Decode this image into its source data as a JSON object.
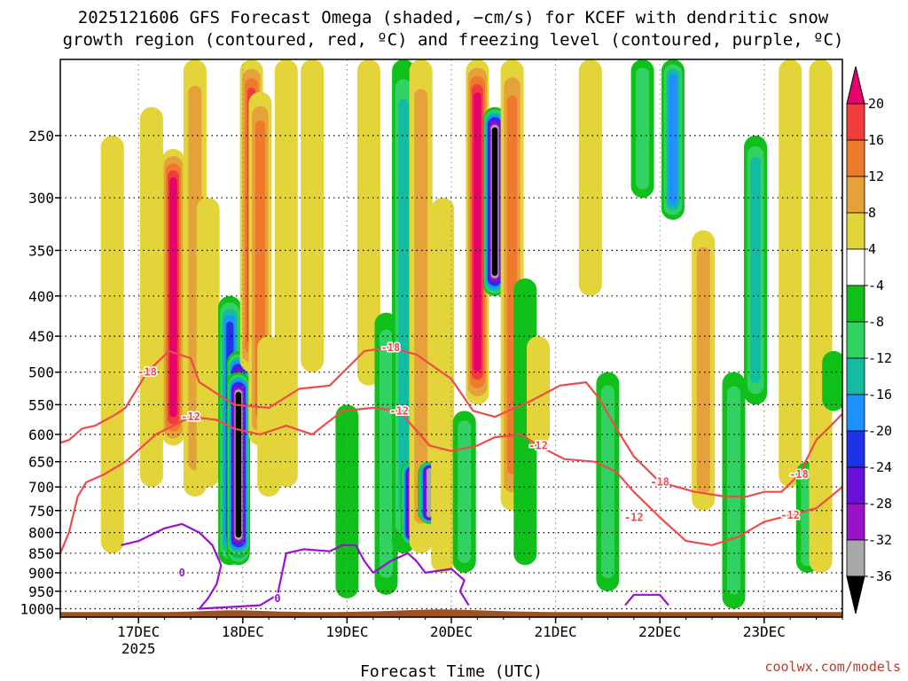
{
  "chart_data": {
    "type": "heatmap",
    "title_line1": "2025121606 GFS Forecast Omega (shaded, −cm/s) for KCEF with dendritic snow",
    "title_line2": "growth region (contoured, red, ºC) and freezing level (contoured, purple, ºC)",
    "xlabel": "Forecast Time (UTC)",
    "x_domain_hours": [
      0,
      180
    ],
    "x_ticks": [
      {
        "label": "17DEC",
        "sub": "2025",
        "hour": 18
      },
      {
        "label": "18DEC",
        "sub": "",
        "hour": 42
      },
      {
        "label": "19DEC",
        "sub": "",
        "hour": 66
      },
      {
        "label": "20DEC",
        "sub": "",
        "hour": 90
      },
      {
        "label": "21DEC",
        "sub": "",
        "hour": 114
      },
      {
        "label": "22DEC",
        "sub": "",
        "hour": 138
      },
      {
        "label": "23DEC",
        "sub": "",
        "hour": 162
      }
    ],
    "y_domain_hpa": [
      200,
      1025
    ],
    "y_ticks": [
      250,
      300,
      350,
      400,
      450,
      500,
      550,
      600,
      650,
      700,
      750,
      800,
      850,
      900,
      950,
      1000
    ],
    "colorbar": {
      "tick_labels": [
        "20",
        "16",
        "12",
        "8",
        "4",
        "-4",
        "-8",
        "-12",
        "-16",
        "-20",
        "-24",
        "-28",
        "-32",
        "-36"
      ],
      "bins": [
        {
          "lo": 20,
          "hi": 24,
          "color": "#e8006e"
        },
        {
          "lo": 16,
          "hi": 20,
          "color": "#f03c3c"
        },
        {
          "lo": 12,
          "hi": 16,
          "color": "#ee7a2c"
        },
        {
          "lo": 8,
          "hi": 12,
          "color": "#e6a23a"
        },
        {
          "lo": 4,
          "hi": 8,
          "color": "#e3d43a"
        },
        {
          "lo": -4,
          "hi": 4,
          "color": "#ffffff"
        },
        {
          "lo": -8,
          "hi": -4,
          "color": "#0fc01a"
        },
        {
          "lo": -12,
          "hi": -8,
          "color": "#32d262"
        },
        {
          "lo": -16,
          "hi": -12,
          "color": "#12bca2"
        },
        {
          "lo": -20,
          "hi": -16,
          "color": "#1e90ff"
        },
        {
          "lo": -24,
          "hi": -20,
          "color": "#1e32e6"
        },
        {
          "lo": -28,
          "hi": -24,
          "color": "#6a10d8"
        },
        {
          "lo": -32,
          "hi": -28,
          "color": "#9a12c8"
        },
        {
          "lo": -36,
          "hi": -32,
          "color": "#a8a8a8"
        },
        {
          "lo": -40,
          "hi": -36,
          "color": "#000000"
        }
      ]
    },
    "omega_features": [
      {
        "hour": 12,
        "p_top": 250,
        "p_bot": 850,
        "value": 6
      },
      {
        "hour": 21,
        "p_top": 230,
        "p_bot": 700,
        "value": 8
      },
      {
        "hour": 26,
        "p_top": 260,
        "p_bot": 620,
        "value": 22
      },
      {
        "hour": 31,
        "p_top": 200,
        "p_bot": 720,
        "value": 12
      },
      {
        "hour": 34,
        "p_top": 300,
        "p_bot": 700,
        "value": 8
      },
      {
        "hour": 39,
        "p_top": 400,
        "p_bot": 880,
        "value": -22
      },
      {
        "hour": 41,
        "p_top": 470,
        "p_bot": 880,
        "value": -34
      },
      {
        "hour": 41,
        "p_top": 500,
        "p_bot": 860,
        "value": -38
      },
      {
        "hour": 44,
        "p_top": 200,
        "p_bot": 500,
        "value": 20
      },
      {
        "hour": 46,
        "p_top": 220,
        "p_bot": 620,
        "value": 14
      },
      {
        "hour": 48,
        "p_top": 450,
        "p_bot": 720,
        "value": 6
      },
      {
        "hour": 52,
        "p_top": 200,
        "p_bot": 700,
        "value": 6
      },
      {
        "hour": 58,
        "p_top": 200,
        "p_bot": 500,
        "value": 8
      },
      {
        "hour": 66,
        "p_top": 550,
        "p_bot": 970,
        "value": -8
      },
      {
        "hour": 71,
        "p_top": 200,
        "p_bot": 520,
        "value": 6
      },
      {
        "hour": 75,
        "p_top": 420,
        "p_bot": 960,
        "value": -10
      },
      {
        "hour": 79,
        "p_top": 200,
        "p_bot": 850,
        "value": -16
      },
      {
        "hour": 81,
        "p_top": 650,
        "p_bot": 830,
        "value": -36
      },
      {
        "hour": 83,
        "p_top": 200,
        "p_bot": 850,
        "value": 10
      },
      {
        "hour": 85,
        "p_top": 650,
        "p_bot": 780,
        "value": -36
      },
      {
        "hour": 88,
        "p_top": 300,
        "p_bot": 900,
        "value": 8
      },
      {
        "hour": 93,
        "p_top": 560,
        "p_bot": 900,
        "value": -12
      },
      {
        "hour": 96,
        "p_top": 200,
        "p_bot": 550,
        "value": 22
      },
      {
        "hour": 100,
        "p_top": 230,
        "p_bot": 400,
        "value": -38
      },
      {
        "hour": 104,
        "p_top": 200,
        "p_bot": 750,
        "value": 14
      },
      {
        "hour": 107,
        "p_top": 380,
        "p_bot": 880,
        "value": -8
      },
      {
        "hour": 110,
        "p_top": 450,
        "p_bot": 620,
        "value": 6
      },
      {
        "hour": 122,
        "p_top": 200,
        "p_bot": 400,
        "value": 6
      },
      {
        "hour": 126,
        "p_top": 500,
        "p_bot": 950,
        "value": -12
      },
      {
        "hour": 134,
        "p_top": 200,
        "p_bot": 300,
        "value": -10
      },
      {
        "hour": 141,
        "p_top": 200,
        "p_bot": 320,
        "value": -18
      },
      {
        "hour": 148,
        "p_top": 330,
        "p_bot": 750,
        "value": 12
      },
      {
        "hour": 155,
        "p_top": 500,
        "p_bot": 1000,
        "value": -12
      },
      {
        "hour": 160,
        "p_top": 250,
        "p_bot": 550,
        "value": -14
      },
      {
        "hour": 168,
        "p_top": 200,
        "p_bot": 700,
        "value": 8
      },
      {
        "hour": 172,
        "p_top": 650,
        "p_bot": 900,
        "value": -12
      },
      {
        "hour": 175,
        "p_top": 200,
        "p_bot": 900,
        "value": 6
      },
      {
        "hour": 178,
        "p_top": 470,
        "p_bot": 560,
        "value": -8
      }
    ],
    "contours": [
      {
        "name": "-18",
        "kind": "dendritic",
        "color": "#f04a4a",
        "label": "-18",
        "points": [
          [
            0,
            615
          ],
          [
            2,
            610
          ],
          [
            5,
            590
          ],
          [
            8,
            585
          ],
          [
            13,
            565
          ],
          [
            15,
            555
          ],
          [
            20,
            500
          ],
          [
            25,
            470
          ],
          [
            30,
            480
          ],
          [
            32,
            515
          ],
          [
            40,
            550
          ],
          [
            48,
            555
          ],
          [
            55,
            525
          ],
          [
            62,
            520
          ],
          [
            70,
            470
          ],
          [
            76,
            465
          ],
          [
            82,
            475
          ],
          [
            90,
            510
          ],
          [
            95,
            560
          ],
          [
            100,
            570
          ],
          [
            108,
            545
          ],
          [
            115,
            520
          ],
          [
            121,
            515
          ],
          [
            124,
            540
          ],
          [
            128,
            590
          ],
          [
            132,
            640
          ],
          [
            138,
            690
          ],
          [
            146,
            710
          ],
          [
            153,
            720
          ],
          [
            158,
            720
          ],
          [
            162,
            710
          ],
          [
            166,
            710
          ],
          [
            170,
            675
          ],
          [
            174,
            610
          ],
          [
            178,
            580
          ],
          [
            180,
            565
          ]
        ],
        "label_points": [
          [
            20,
            500
          ],
          [
            76,
            465
          ],
          [
            138,
            690
          ],
          [
            170,
            675
          ]
        ]
      },
      {
        "name": "-12",
        "kind": "dendritic",
        "color": "#f04a4a",
        "label": "-12",
        "points": [
          [
            0,
            850
          ],
          [
            2,
            800
          ],
          [
            4,
            720
          ],
          [
            6,
            690
          ],
          [
            10,
            675
          ],
          [
            15,
            650
          ],
          [
            22,
            600
          ],
          [
            30,
            570
          ],
          [
            36,
            575
          ],
          [
            40,
            590
          ],
          [
            46,
            600
          ],
          [
            52,
            585
          ],
          [
            58,
            600
          ],
          [
            65,
            560
          ],
          [
            72,
            555
          ],
          [
            78,
            560
          ],
          [
            85,
            620
          ],
          [
            90,
            630
          ],
          [
            96,
            620
          ],
          [
            100,
            605
          ],
          [
            106,
            600
          ],
          [
            110,
            620
          ],
          [
            116,
            645
          ],
          [
            123,
            650
          ],
          [
            128,
            670
          ],
          [
            132,
            710
          ],
          [
            138,
            765
          ],
          [
            144,
            820
          ],
          [
            150,
            830
          ],
          [
            156,
            810
          ],
          [
            162,
            775
          ],
          [
            168,
            760
          ],
          [
            174,
            745
          ],
          [
            180,
            700
          ]
        ],
        "label_points": [
          [
            30,
            570
          ],
          [
            78,
            560
          ],
          [
            110,
            620
          ],
          [
            132,
            765
          ],
          [
            168,
            760
          ]
        ]
      },
      {
        "name": "0",
        "kind": "freezing",
        "color": "#9a10d0",
        "label": "0",
        "points": [
          [
            14,
            830
          ],
          [
            18,
            820
          ],
          [
            24,
            790
          ],
          [
            28,
            780
          ],
          [
            32,
            800
          ],
          [
            35,
            830
          ],
          [
            37,
            880
          ],
          [
            36,
            930
          ],
          [
            34,
            970
          ],
          [
            32,
            1000
          ],
          [
            46,
            990
          ],
          [
            50,
            960
          ],
          [
            52,
            850
          ],
          [
            56,
            840
          ],
          [
            62,
            845
          ],
          [
            65,
            830
          ],
          [
            68,
            830
          ],
          [
            70,
            870
          ],
          [
            72,
            900
          ],
          [
            76,
            870
          ],
          [
            80,
            850
          ],
          [
            82,
            870
          ],
          [
            84,
            900
          ],
          [
            90,
            890
          ],
          [
            93,
            920
          ],
          [
            92,
            950
          ],
          [
            94,
            990
          ]
        ],
        "label_points": [
          [
            28,
            900
          ],
          [
            50,
            970
          ]
        ]
      },
      {
        "name": "0b",
        "kind": "freezing",
        "color": "#9a10d0",
        "label": "0",
        "points": [
          [
            130,
            990
          ],
          [
            132,
            960
          ],
          [
            138,
            960
          ],
          [
            140,
            990
          ]
        ],
        "label_points": []
      }
    ],
    "ground": {
      "surface_hpa": 1010
    }
  },
  "credit": "coolwx.com/models"
}
